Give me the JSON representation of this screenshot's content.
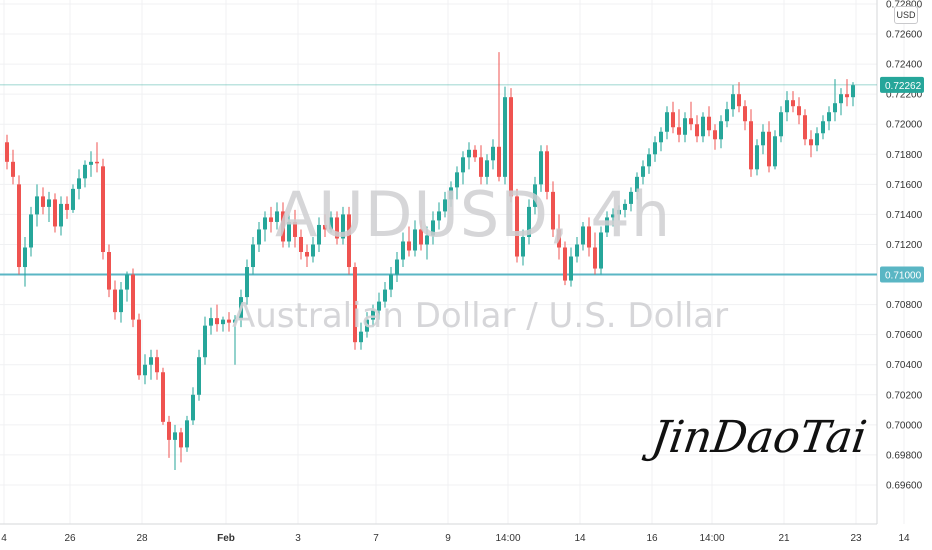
{
  "chart_data": {
    "type": "candlestick",
    "symbol": "AUDUSD, 4h",
    "description": "Australian Dollar / U.S. Dollar",
    "currency": "USD",
    "ylim": [
      0.695,
      0.728
    ],
    "y_ticks": [
      "0.72800",
      "0.72600",
      "0.72400",
      "0.72200",
      "0.72000",
      "0.71800",
      "0.71600",
      "0.71400",
      "0.71200",
      "0.71000",
      "0.70800",
      "0.70600",
      "0.70400",
      "0.70200",
      "0.70000",
      "0.69800",
      "0.69600"
    ],
    "y_tick_values": [
      0.728,
      0.726,
      0.724,
      0.722,
      0.72,
      0.718,
      0.716,
      0.714,
      0.712,
      0.71,
      0.708,
      0.706,
      0.704,
      0.702,
      0.7,
      0.698,
      0.696
    ],
    "x_ticks": [
      "4",
      "26",
      "28",
      "Feb",
      "3",
      "7",
      "9",
      "14:00",
      "14",
      "16",
      "14:00",
      "21",
      "23",
      "14"
    ],
    "x_tick_bar_index": [
      0,
      11,
      23,
      37,
      49,
      62,
      74,
      84,
      96,
      108,
      118,
      130,
      142,
      150
    ],
    "last_price": {
      "label": "0.72262",
      "value": 0.72262
    },
    "horizontal_levels": [
      {
        "label": "0.71000",
        "value": 0.71
      }
    ],
    "grid": true,
    "candles": [
      [
        0.7188,
        0.7193,
        0.717,
        0.7175
      ],
      [
        0.7175,
        0.7183,
        0.716,
        0.7165
      ],
      [
        0.716,
        0.7166,
        0.71,
        0.7105
      ],
      [
        0.7105,
        0.7125,
        0.7092,
        0.7118
      ],
      [
        0.7118,
        0.7145,
        0.7112,
        0.714
      ],
      [
        0.714,
        0.716,
        0.7132,
        0.7152
      ],
      [
        0.7152,
        0.7158,
        0.714,
        0.7145
      ],
      [
        0.7145,
        0.7155,
        0.7135,
        0.715
      ],
      [
        0.715,
        0.7154,
        0.7128,
        0.7132
      ],
      [
        0.7132,
        0.7152,
        0.7126,
        0.7147
      ],
      [
        0.7147,
        0.7152,
        0.7137,
        0.7143
      ],
      [
        0.7143,
        0.716,
        0.7141,
        0.7157
      ],
      [
        0.7157,
        0.717,
        0.715,
        0.7164
      ],
      [
        0.7164,
        0.7176,
        0.7158,
        0.7173
      ],
      [
        0.7173,
        0.7182,
        0.7165,
        0.7175
      ],
      [
        0.7175,
        0.7188,
        0.7168,
        0.7174
      ],
      [
        0.7172,
        0.7177,
        0.711,
        0.7115
      ],
      [
        0.7115,
        0.712,
        0.7085,
        0.709
      ],
      [
        0.709,
        0.7096,
        0.707,
        0.7075
      ],
      [
        0.7075,
        0.7095,
        0.7068,
        0.709
      ],
      [
        0.709,
        0.7102,
        0.7082,
        0.71
      ],
      [
        0.71,
        0.7104,
        0.7065,
        0.707
      ],
      [
        0.707,
        0.7074,
        0.703,
        0.7033
      ],
      [
        0.7033,
        0.7047,
        0.7027,
        0.704
      ],
      [
        0.704,
        0.705,
        0.703,
        0.7045
      ],
      [
        0.7045,
        0.705,
        0.703,
        0.7035
      ],
      [
        0.7035,
        0.7038,
        0.7,
        0.7002
      ],
      [
        0.7002,
        0.7006,
        0.6978,
        0.699
      ],
      [
        0.699,
        0.7,
        0.697,
        0.6995
      ],
      [
        0.6995,
        0.6998,
        0.6975,
        0.6985
      ],
      [
        0.6985,
        0.7006,
        0.6982,
        0.7003
      ],
      [
        0.7003,
        0.7025,
        0.7,
        0.702
      ],
      [
        0.702,
        0.705,
        0.7016,
        0.7045
      ],
      [
        0.7045,
        0.7072,
        0.704,
        0.7066
      ],
      [
        0.7066,
        0.7078,
        0.706,
        0.7071
      ],
      [
        0.7071,
        0.708,
        0.7062,
        0.7067
      ],
      [
        0.7067,
        0.7072,
        0.7062,
        0.707
      ],
      [
        0.707,
        0.7075,
        0.7062,
        0.7068
      ],
      [
        0.7068,
        0.7073,
        0.704,
        0.707
      ],
      [
        0.707,
        0.709,
        0.7065,
        0.7085
      ],
      [
        0.7085,
        0.711,
        0.708,
        0.7105
      ],
      [
        0.7105,
        0.7125,
        0.71,
        0.712
      ],
      [
        0.712,
        0.7135,
        0.7115,
        0.713
      ],
      [
        0.713,
        0.7142,
        0.7122,
        0.7138
      ],
      [
        0.7138,
        0.7145,
        0.7128,
        0.7135
      ],
      [
        0.7135,
        0.7148,
        0.713,
        0.7142
      ],
      [
        0.7142,
        0.7148,
        0.7118,
        0.7122
      ],
      [
        0.7122,
        0.714,
        0.7118,
        0.7135
      ],
      [
        0.7135,
        0.7143,
        0.7118,
        0.7125
      ],
      [
        0.7125,
        0.713,
        0.711,
        0.7115
      ],
      [
        0.7115,
        0.712,
        0.7105,
        0.7112
      ],
      [
        0.7112,
        0.7125,
        0.7108,
        0.712
      ],
      [
        0.712,
        0.7138,
        0.7115,
        0.7133
      ],
      [
        0.7133,
        0.714,
        0.7125,
        0.713
      ],
      [
        0.713,
        0.7142,
        0.7128,
        0.7138
      ],
      [
        0.7138,
        0.7142,
        0.712,
        0.7124
      ],
      [
        0.7124,
        0.7145,
        0.712,
        0.714
      ],
      [
        0.714,
        0.7145,
        0.71,
        0.7105
      ],
      [
        0.7105,
        0.7108,
        0.705,
        0.7055
      ],
      [
        0.7055,
        0.7068,
        0.705,
        0.7062
      ],
      [
        0.7062,
        0.7075,
        0.7058,
        0.707
      ],
      [
        0.707,
        0.708,
        0.7065,
        0.7076
      ],
      [
        0.7076,
        0.7088,
        0.707,
        0.7082
      ],
      [
        0.7082,
        0.7095,
        0.7078,
        0.709
      ],
      [
        0.709,
        0.7105,
        0.7085,
        0.71
      ],
      [
        0.71,
        0.7115,
        0.7095,
        0.711
      ],
      [
        0.711,
        0.7128,
        0.7105,
        0.7122
      ],
      [
        0.7122,
        0.7132,
        0.7112,
        0.7116
      ],
      [
        0.7116,
        0.7136,
        0.7112,
        0.713
      ],
      [
        0.713,
        0.7136,
        0.7116,
        0.712
      ],
      [
        0.712,
        0.7132,
        0.711,
        0.7126
      ],
      [
        0.7126,
        0.7142,
        0.712,
        0.7136
      ],
      [
        0.7136,
        0.7148,
        0.713,
        0.7142
      ],
      [
        0.7142,
        0.7155,
        0.7138,
        0.715
      ],
      [
        0.715,
        0.7162,
        0.7145,
        0.7158
      ],
      [
        0.7158,
        0.7172,
        0.715,
        0.7168
      ],
      [
        0.7168,
        0.7182,
        0.716,
        0.7178
      ],
      [
        0.7178,
        0.7188,
        0.717,
        0.7183
      ],
      [
        0.7183,
        0.7186,
        0.7175,
        0.7178
      ],
      [
        0.7178,
        0.7186,
        0.716,
        0.7165
      ],
      [
        0.7165,
        0.718,
        0.716,
        0.7176
      ],
      [
        0.7176,
        0.719,
        0.717,
        0.7185
      ],
      [
        0.7185,
        0.7248,
        0.7162,
        0.7165
      ],
      [
        0.7165,
        0.7225,
        0.716,
        0.7218
      ],
      [
        0.7218,
        0.7224,
        0.7148,
        0.7152
      ],
      [
        0.7152,
        0.7157,
        0.7108,
        0.7112
      ],
      [
        0.7112,
        0.713,
        0.7106,
        0.7125
      ],
      [
        0.7125,
        0.715,
        0.712,
        0.7145
      ],
      [
        0.7145,
        0.7165,
        0.714,
        0.716
      ],
      [
        0.716,
        0.7186,
        0.7155,
        0.7182
      ],
      [
        0.7182,
        0.7186,
        0.715,
        0.7155
      ],
      [
        0.7155,
        0.7162,
        0.7125,
        0.713
      ],
      [
        0.713,
        0.714,
        0.711,
        0.7118
      ],
      [
        0.7118,
        0.7122,
        0.7093,
        0.7096
      ],
      [
        0.7096,
        0.7118,
        0.7092,
        0.7112
      ],
      [
        0.7112,
        0.7125,
        0.7108,
        0.712
      ],
      [
        0.712,
        0.7135,
        0.7116,
        0.7132
      ],
      [
        0.7132,
        0.7138,
        0.7112,
        0.7118
      ],
      [
        0.7118,
        0.7128,
        0.71,
        0.7104
      ],
      [
        0.7104,
        0.7132,
        0.71,
        0.7128
      ],
      [
        0.7128,
        0.7142,
        0.7125,
        0.7138
      ],
      [
        0.7138,
        0.7144,
        0.7132,
        0.714
      ],
      [
        0.714,
        0.7146,
        0.7136,
        0.7143
      ],
      [
        0.7143,
        0.715,
        0.7138,
        0.7147
      ],
      [
        0.7147,
        0.7158,
        0.7142,
        0.7155
      ],
      [
        0.7155,
        0.7168,
        0.715,
        0.7165
      ],
      [
        0.7165,
        0.7176,
        0.716,
        0.7172
      ],
      [
        0.7172,
        0.7184,
        0.7167,
        0.718
      ],
      [
        0.718,
        0.7192,
        0.7175,
        0.7188
      ],
      [
        0.7188,
        0.7198,
        0.7182,
        0.7195
      ],
      [
        0.7195,
        0.7212,
        0.719,
        0.7208
      ],
      [
        0.7208,
        0.7215,
        0.7194,
        0.7198
      ],
      [
        0.7198,
        0.721,
        0.7188,
        0.7193
      ],
      [
        0.7193,
        0.7208,
        0.7188,
        0.7204
      ],
      [
        0.7204,
        0.7215,
        0.7196,
        0.72
      ],
      [
        0.72,
        0.7206,
        0.7188,
        0.7192
      ],
      [
        0.7192,
        0.7208,
        0.7188,
        0.7205
      ],
      [
        0.7205,
        0.7212,
        0.7192,
        0.7196
      ],
      [
        0.7196,
        0.72,
        0.7183,
        0.719
      ],
      [
        0.719,
        0.7206,
        0.7184,
        0.7202
      ],
      [
        0.7202,
        0.7215,
        0.7198,
        0.721
      ],
      [
        0.721,
        0.7226,
        0.7205,
        0.722
      ],
      [
        0.722,
        0.7228,
        0.7208,
        0.7212
      ],
      [
        0.7212,
        0.7216,
        0.7196,
        0.7202
      ],
      [
        0.7202,
        0.721,
        0.7165,
        0.717
      ],
      [
        0.717,
        0.719,
        0.7166,
        0.7186
      ],
      [
        0.7186,
        0.72,
        0.718,
        0.7195
      ],
      [
        0.7195,
        0.7202,
        0.7168,
        0.7172
      ],
      [
        0.7172,
        0.7196,
        0.717,
        0.7192
      ],
      [
        0.7192,
        0.7212,
        0.7188,
        0.7208
      ],
      [
        0.7208,
        0.7222,
        0.7202,
        0.7216
      ],
      [
        0.7216,
        0.7222,
        0.7208,
        0.7212
      ],
      [
        0.7212,
        0.7218,
        0.72,
        0.7206
      ],
      [
        0.7206,
        0.721,
        0.7186,
        0.719
      ],
      [
        0.719,
        0.7196,
        0.7178,
        0.7186
      ],
      [
        0.7186,
        0.7198,
        0.7182,
        0.7194
      ],
      [
        0.7194,
        0.7206,
        0.719,
        0.7202
      ],
      [
        0.7202,
        0.7212,
        0.7196,
        0.7208
      ],
      [
        0.7208,
        0.723,
        0.7202,
        0.7214
      ],
      [
        0.7214,
        0.7224,
        0.7206,
        0.722
      ],
      [
        0.722,
        0.723,
        0.7212,
        0.7218
      ],
      [
        0.7218,
        0.7228,
        0.7212,
        0.7226
      ]
    ]
  },
  "watermark": {
    "symbol": "AUDUSD, 4h",
    "description": "Australian Dollar / U.S. Dollar"
  },
  "signature": {
    "text": "JinDaoTai"
  },
  "colors": {
    "up": "#26a69a",
    "down": "#ef5350",
    "level_line": "#5ab6c4",
    "last_price_line": "#26a69a",
    "grid": "#f0f1f3"
  }
}
